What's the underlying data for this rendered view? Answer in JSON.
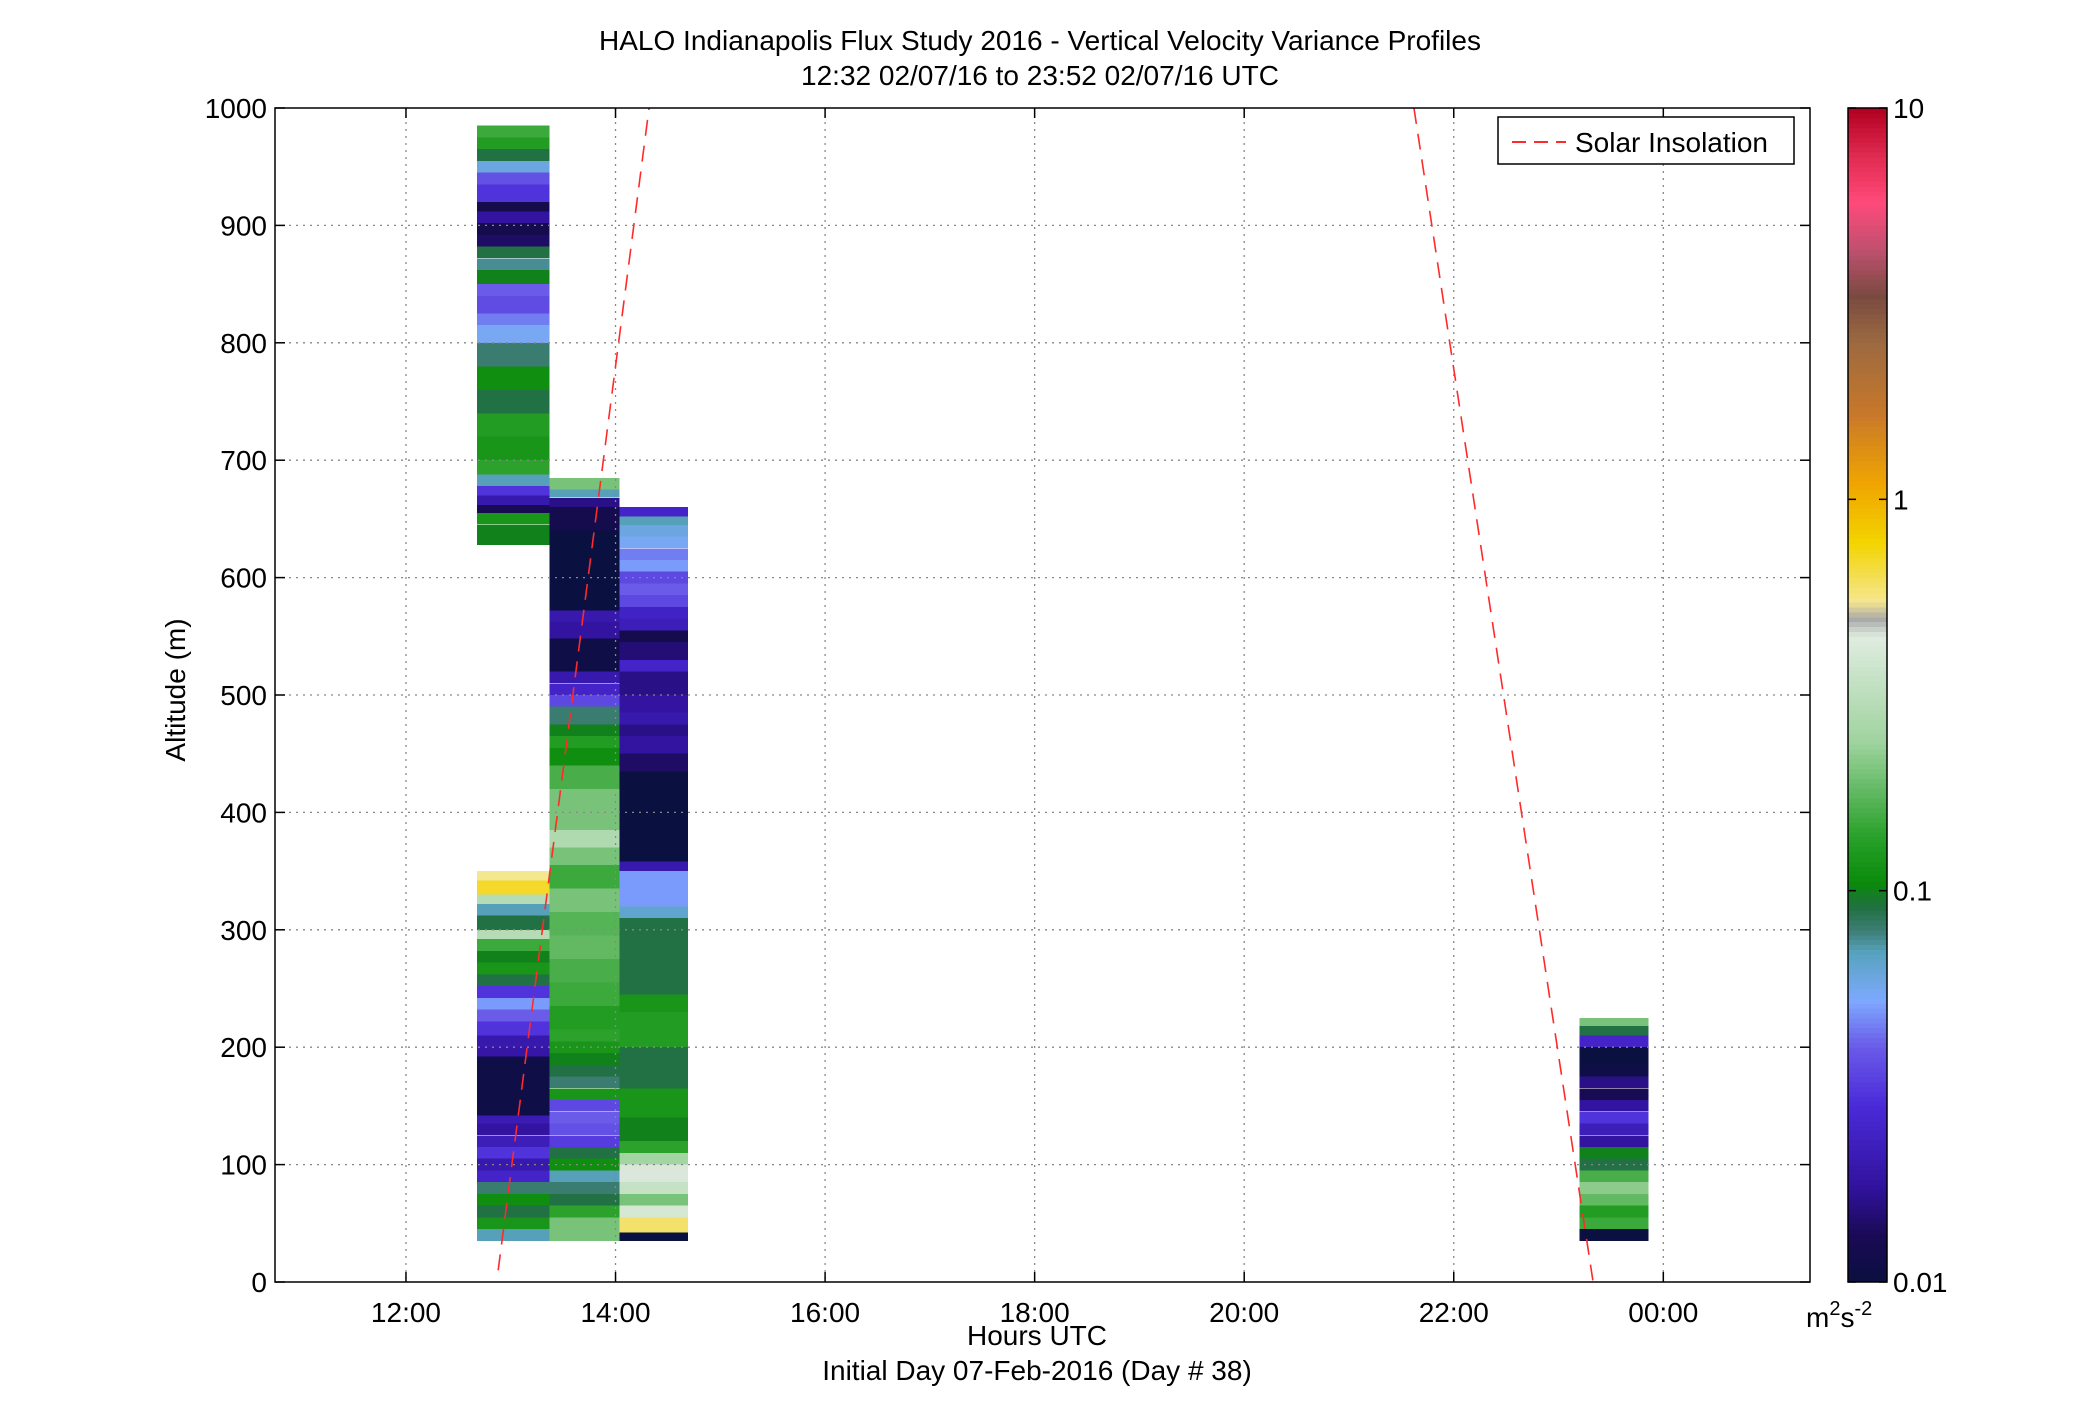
{
  "chart_data": {
    "type": "heatmap",
    "title": "HALO Indianapolis Flux Study 2016 - Vertical Velocity Variance Profiles",
    "subtitle": "12:32 02/07/16 to 23:52 02/07/16  UTC",
    "xlabel": "Hours UTC",
    "xlabel2": "Initial Day 07-Feb-2016 (Day # 38)",
    "ylabel": "Altitude (m)",
    "xlim": [
      10.75,
      25.4
    ],
    "ylim": [
      0,
      1000
    ],
    "x_ticks": [
      12,
      14,
      16,
      18,
      20,
      22,
      24
    ],
    "x_tick_labels": [
      "12:00",
      "14:00",
      "16:00",
      "18:00",
      "20:00",
      "22:00",
      "00:00"
    ],
    "y_ticks": [
      0,
      100,
      200,
      300,
      400,
      500,
      600,
      700,
      800,
      900,
      1000
    ],
    "y_tick_labels": [
      "0",
      "100",
      "200",
      "300",
      "400",
      "500",
      "600",
      "700",
      "800",
      "900",
      "1000"
    ],
    "grid": true,
    "colorbar": {
      "scale": "log",
      "min": 0.01,
      "max": 10,
      "tick_values": [
        0.01,
        0.1,
        1,
        10
      ],
      "tick_labels": [
        "0.01",
        "0.1",
        "1",
        "10"
      ],
      "unit_label": "m",
      "unit_sup1": "2",
      "unit_mid": "s",
      "unit_sup2": "-2"
    },
    "legend": {
      "position": "top-right",
      "entries": [
        "Solar Insolation"
      ]
    },
    "solar_insolation_lines": [
      {
        "x": [
          12.88,
          14.32
        ],
        "y": [
          10,
          1000
        ]
      },
      {
        "x": [
          21.62,
          23.33
        ],
        "y": [
          1000,
          0
        ]
      }
    ],
    "profiles": [
      {
        "time_start": 12.68,
        "time_end": 13.37,
        "segments": [
          [
            628,
            645,
            0.1
          ],
          [
            645,
            655,
            0.12
          ],
          [
            655,
            662,
            0.013
          ],
          [
            662,
            670,
            0.02
          ],
          [
            670,
            678,
            0.03
          ],
          [
            678,
            688,
            0.07
          ],
          [
            688,
            700,
            0.14
          ],
          [
            700,
            720,
            0.12
          ],
          [
            720,
            740,
            0.13
          ],
          [
            740,
            760,
            0.09
          ],
          [
            760,
            780,
            0.11
          ],
          [
            780,
            800,
            0.08
          ],
          [
            800,
            815,
            0.055
          ],
          [
            815,
            825,
            0.045
          ],
          [
            825,
            840,
            0.036
          ],
          [
            840,
            850,
            0.04
          ],
          [
            850,
            862,
            0.1
          ],
          [
            862,
            872,
            0.075
          ],
          [
            872,
            882,
            0.09
          ],
          [
            882,
            892,
            0.014
          ],
          [
            892,
            902,
            0.012
          ],
          [
            902,
            912,
            0.018
          ],
          [
            912,
            920,
            0.012
          ],
          [
            920,
            935,
            0.03
          ],
          [
            935,
            945,
            0.037
          ],
          [
            945,
            955,
            0.06
          ],
          [
            955,
            965,
            0.09
          ],
          [
            965,
            975,
            0.13
          ],
          [
            975,
            985,
            0.15
          ],
          [
            35,
            45,
            0.07
          ],
          [
            45,
            55,
            0.12
          ],
          [
            55,
            65,
            0.09
          ],
          [
            65,
            75,
            0.11
          ],
          [
            75,
            85,
            0.08
          ],
          [
            85,
            95,
            0.025
          ],
          [
            95,
            105,
            0.02
          ],
          [
            105,
            115,
            0.03
          ],
          [
            115,
            125,
            0.022
          ],
          [
            125,
            135,
            0.018
          ],
          [
            135,
            142,
            0.021
          ],
          [
            142,
            192,
            0.011
          ],
          [
            192,
            200,
            0.019
          ],
          [
            200,
            210,
            0.02
          ],
          [
            210,
            222,
            0.03
          ],
          [
            222,
            232,
            0.04
          ],
          [
            232,
            242,
            0.05
          ],
          [
            242,
            252,
            0.03
          ],
          [
            252,
            262,
            0.09
          ],
          [
            262,
            272,
            0.12
          ],
          [
            272,
            282,
            0.1
          ],
          [
            282,
            292,
            0.15
          ],
          [
            292,
            300,
            0.3
          ],
          [
            300,
            312,
            0.09
          ],
          [
            312,
            322,
            0.07
          ],
          [
            322,
            330,
            0.3
          ],
          [
            330,
            342,
            0.7
          ],
          [
            342,
            350,
            0.55
          ]
        ]
      },
      {
        "time_start": 13.37,
        "time_end": 14.04,
        "segments": [
          [
            35,
            55,
            0.2
          ],
          [
            55,
            65,
            0.14
          ],
          [
            65,
            75,
            0.09
          ],
          [
            75,
            85,
            0.08
          ],
          [
            85,
            95,
            0.07
          ],
          [
            95,
            105,
            0.11
          ],
          [
            105,
            115,
            0.09
          ],
          [
            115,
            125,
            0.032
          ],
          [
            125,
            135,
            0.037
          ],
          [
            135,
            145,
            0.04
          ],
          [
            145,
            155,
            0.035
          ],
          [
            155,
            165,
            0.12
          ],
          [
            165,
            175,
            0.08
          ],
          [
            175,
            185,
            0.09
          ],
          [
            185,
            195,
            0.1
          ],
          [
            195,
            205,
            0.12
          ],
          [
            205,
            215,
            0.14
          ],
          [
            215,
            235,
            0.13
          ],
          [
            235,
            255,
            0.15
          ],
          [
            255,
            275,
            0.16
          ],
          [
            275,
            295,
            0.18
          ],
          [
            295,
            315,
            0.17
          ],
          [
            315,
            335,
            0.2
          ],
          [
            335,
            355,
            0.15
          ],
          [
            355,
            370,
            0.2
          ],
          [
            370,
            385,
            0.28
          ],
          [
            385,
            420,
            0.2
          ],
          [
            420,
            440,
            0.16
          ],
          [
            440,
            455,
            0.11
          ],
          [
            455,
            465,
            0.13
          ],
          [
            465,
            475,
            0.1
          ],
          [
            475,
            490,
            0.08
          ],
          [
            490,
            500,
            0.035
          ],
          [
            500,
            510,
            0.025
          ],
          [
            510,
            520,
            0.02
          ],
          [
            520,
            548,
            0.011
          ],
          [
            548,
            562,
            0.018
          ],
          [
            562,
            572,
            0.02
          ],
          [
            572,
            640,
            0.01
          ],
          [
            640,
            660,
            0.012
          ],
          [
            660,
            668,
            0.016
          ],
          [
            668,
            675,
            0.07
          ],
          [
            675,
            685,
            0.2
          ]
        ]
      },
      {
        "time_start": 14.04,
        "time_end": 14.69,
        "segments": [
          [
            35,
            42,
            0.01
          ],
          [
            42,
            55,
            0.6
          ],
          [
            55,
            65,
            0.4
          ],
          [
            65,
            75,
            0.2
          ],
          [
            75,
            85,
            0.35
          ],
          [
            85,
            100,
            0.45
          ],
          [
            100,
            110,
            0.25
          ],
          [
            110,
            120,
            0.14
          ],
          [
            120,
            140,
            0.1
          ],
          [
            140,
            165,
            0.12
          ],
          [
            165,
            200,
            0.09
          ],
          [
            200,
            230,
            0.13
          ],
          [
            230,
            245,
            0.12
          ],
          [
            245,
            310,
            0.09
          ],
          [
            310,
            320,
            0.065
          ],
          [
            320,
            350,
            0.05
          ],
          [
            350,
            358,
            0.02
          ],
          [
            358,
            435,
            0.01
          ],
          [
            435,
            450,
            0.014
          ],
          [
            450,
            465,
            0.018
          ],
          [
            465,
            475,
            0.016
          ],
          [
            475,
            485,
            0.02
          ],
          [
            485,
            500,
            0.018
          ],
          [
            500,
            520,
            0.016
          ],
          [
            520,
            530,
            0.025
          ],
          [
            530,
            545,
            0.015
          ],
          [
            545,
            555,
            0.012
          ],
          [
            555,
            565,
            0.022
          ],
          [
            565,
            575,
            0.024
          ],
          [
            575,
            585,
            0.035
          ],
          [
            585,
            595,
            0.04
          ],
          [
            595,
            605,
            0.035
          ],
          [
            605,
            615,
            0.05
          ],
          [
            615,
            625,
            0.045
          ],
          [
            625,
            635,
            0.055
          ],
          [
            635,
            645,
            0.06
          ],
          [
            645,
            652,
            0.07
          ],
          [
            652,
            660,
            0.025
          ]
        ]
      },
      {
        "time_start": 23.2,
        "time_end": 23.86,
        "segments": [
          [
            35,
            45,
            0.01
          ],
          [
            45,
            55,
            0.15
          ],
          [
            55,
            65,
            0.13
          ],
          [
            65,
            75,
            0.18
          ],
          [
            75,
            85,
            0.22
          ],
          [
            85,
            95,
            0.16
          ],
          [
            95,
            105,
            0.09
          ],
          [
            105,
            115,
            0.1
          ],
          [
            115,
            125,
            0.018
          ],
          [
            125,
            135,
            0.022
          ],
          [
            135,
            145,
            0.03
          ],
          [
            145,
            155,
            0.018
          ],
          [
            155,
            165,
            0.013
          ],
          [
            165,
            175,
            0.016
          ],
          [
            175,
            185,
            0.011
          ],
          [
            185,
            200,
            0.01
          ],
          [
            200,
            210,
            0.025
          ],
          [
            210,
            218,
            0.09
          ],
          [
            218,
            225,
            0.2
          ]
        ]
      }
    ]
  },
  "colors": {
    "solar_line": "#ff2a2a",
    "colormap_stops": [
      [
        0.0,
        "#0a1040"
      ],
      [
        0.04,
        "#1a0a55"
      ],
      [
        0.08,
        "#30129c"
      ],
      [
        0.15,
        "#4a2ad8"
      ],
      [
        0.2,
        "#6a5ae8"
      ],
      [
        0.24,
        "#7ea9ff"
      ],
      [
        0.28,
        "#58a3c0"
      ],
      [
        0.3,
        "#3d7d73"
      ],
      [
        0.32,
        "#1f7040"
      ],
      [
        0.34,
        "#0a8a0a"
      ],
      [
        0.38,
        "#29a12a"
      ],
      [
        0.46,
        "#9fd39f"
      ],
      [
        0.55,
        "#e0ece0"
      ],
      [
        0.565,
        "#a8a8a8"
      ],
      [
        0.58,
        "#f5e690"
      ],
      [
        0.63,
        "#f3d400"
      ],
      [
        0.68,
        "#f0a500"
      ],
      [
        0.74,
        "#c8782a"
      ],
      [
        0.8,
        "#9c6a40"
      ],
      [
        0.84,
        "#7a4a40"
      ],
      [
        0.88,
        "#c05070"
      ],
      [
        0.92,
        "#ff4a7a"
      ],
      [
        0.96,
        "#e02a50"
      ],
      [
        1.0,
        "#b00020"
      ]
    ]
  }
}
